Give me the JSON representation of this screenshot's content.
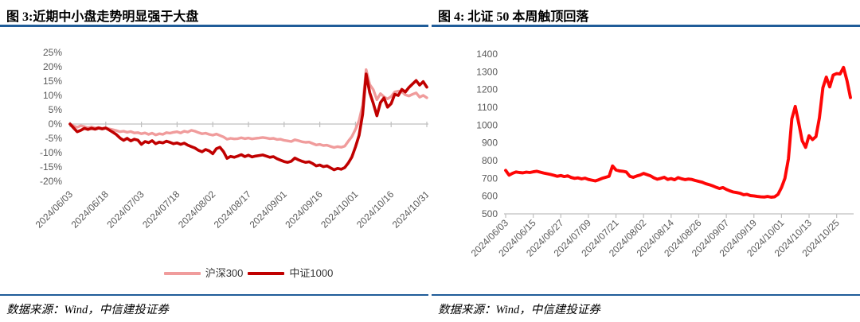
{
  "accent_color": "#1F5C99",
  "axis_color": "#BFBFBF",
  "label_color": "#595959",
  "panels": [
    {
      "title": "图 3:近期中小盘走势明显强于大盘",
      "source": "数据来源：Wind，中信建投证券",
      "chart_data": {
        "type": "line",
        "title": "",
        "xlabel": "",
        "ylabel": "",
        "ylim": [
          -20,
          25
        ],
        "y_ticks": [
          25,
          20,
          15,
          10,
          5,
          0,
          -5,
          -10,
          -15,
          -20
        ],
        "y_tick_suffix": "%",
        "grid": false,
        "legend_position": "bottom",
        "x_tick_labels": [
          "2024/06/03",
          "2024/06/18",
          "2024/07/03",
          "2024/07/18",
          "2024/08/02",
          "2024/08/17",
          "2024/09/01",
          "2024/09/16",
          "2024/10/01",
          "2024/10/16",
          "2024/10/31"
        ],
        "series": [
          {
            "name": "沪深300",
            "color": "#F09C9C",
            "values": [
              0.0,
              -0.7,
              -1.1,
              -0.6,
              -0.9,
              -1.3,
              -1.0,
              -1.4,
              -1.2,
              -1.5,
              -1.3,
              -1.7,
              -2.0,
              -2.3,
              -2.7,
              -2.5,
              -2.9,
              -2.6,
              -3.1,
              -3.0,
              -3.4,
              -3.1,
              -3.6,
              -3.2,
              -3.8,
              -3.4,
              -3.6,
              -3.0,
              -3.2,
              -2.9,
              -2.7,
              -3.1,
              -2.5,
              -2.8,
              -2.2,
              -2.5,
              -3.0,
              -3.4,
              -3.2,
              -3.6,
              -3.9,
              -3.5,
              -4.0,
              -4.5,
              -5.3,
              -5.0,
              -5.2,
              -5.1,
              -4.8,
              -5.1,
              -4.9,
              -5.2,
              -5.0,
              -4.9,
              -4.7,
              -4.9,
              -5.1,
              -5.0,
              -5.4,
              -5.3,
              -5.7,
              -5.9,
              -6.1,
              -5.5,
              -5.8,
              -6.2,
              -6.4,
              -6.3,
              -6.8,
              -7.3,
              -7.1,
              -7.5,
              -7.4,
              -7.8,
              -8.2,
              -7.9,
              -8.1,
              -7.7,
              -6.0,
              -4.4,
              -1.9,
              1.2,
              6.6,
              19.0,
              13.8,
              12.0,
              8.5,
              10.6,
              9.5,
              8.8,
              9.6,
              11.2,
              11.5,
              11.3,
              10.2,
              9.8,
              10.4,
              10.9,
              9.4,
              10.0,
              9.2
            ]
          },
          {
            "name": "中证1000",
            "color": "#C00000",
            "values": [
              0.0,
              -1.4,
              -2.7,
              -2.2,
              -1.5,
              -1.9,
              -1.5,
              -1.8,
              -1.4,
              -1.7,
              -1.4,
              -2.1,
              -2.9,
              -3.7,
              -4.9,
              -5.7,
              -5.0,
              -5.9,
              -5.3,
              -5.6,
              -7.1,
              -6.1,
              -6.5,
              -5.8,
              -6.9,
              -6.3,
              -6.6,
              -6.0,
              -6.4,
              -6.9,
              -6.6,
              -7.1,
              -6.7,
              -7.4,
              -7.9,
              -8.4,
              -9.2,
              -9.7,
              -8.9,
              -9.4,
              -10.4,
              -8.6,
              -8.1,
              -9.6,
              -12.0,
              -11.3,
              -11.6,
              -11.2,
              -10.7,
              -11.4,
              -10.9,
              -11.5,
              -11.2,
              -11.0,
              -10.8,
              -11.2,
              -11.6,
              -11.4,
              -12.1,
              -12.6,
              -13.1,
              -13.4,
              -13.0,
              -11.9,
              -12.5,
              -13.0,
              -13.4,
              -13.2,
              -13.8,
              -14.6,
              -14.3,
              -14.9,
              -14.6,
              -15.3,
              -16.0,
              -15.5,
              -15.8,
              -15.2,
              -13.6,
              -11.5,
              -8.0,
              -4.0,
              3.4,
              17.5,
              11.0,
              7.2,
              2.9,
              7.5,
              9.1,
              5.9,
              7.1,
              10.4,
              10.0,
              12.1,
              11.2,
              12.8,
              14.0,
              15.2,
              13.6,
              14.8,
              12.9
            ]
          }
        ]
      }
    },
    {
      "title": "图 4: 北证 50 本周触顶回落",
      "source": "数据来源：Wind，中信建投证券",
      "chart_data": {
        "type": "line",
        "title": "",
        "xlabel": "",
        "ylabel": "",
        "ylim": [
          500,
          1400
        ],
        "y_ticks": [
          1400,
          1300,
          1200,
          1100,
          1000,
          900,
          800,
          700,
          600,
          500
        ],
        "y_tick_suffix": "",
        "grid": false,
        "legend_position": "none",
        "x_tick_labels": [
          "2024/06/03",
          "2024/06/15",
          "2024/06/27",
          "2024/07/09",
          "2024/07/21",
          "2024/08/02",
          "2024/08/14",
          "2024/08/26",
          "2024/09/07",
          "2024/09/19",
          "2024/10/01",
          "2024/10/13",
          "2024/10/25"
        ],
        "series": [
          {
            "name": "北证50",
            "color": "#FE0606",
            "values": [
              745,
              718,
              729,
              736,
              733,
              731,
              735,
              733,
              737,
              740,
              735,
              730,
              726,
              722,
              717,
              712,
              716,
              710,
              714,
              705,
              700,
              703,
              697,
              701,
              694,
              690,
              686,
              692,
              700,
              706,
              712,
              770,
              747,
              742,
              740,
              736,
              712,
              706,
              713,
              719,
              728,
              721,
              714,
              703,
              695,
              700,
              706,
              694,
              699,
              692,
              704,
              698,
              693,
              696,
              694,
              688,
              683,
              678,
              670,
              665,
              658,
              650,
              643,
              648,
              638,
              630,
              623,
              620,
              616,
              608,
              610,
              603,
              601,
              598,
              596,
              595,
              598,
              594,
              596,
              610,
              648,
              700,
              810,
              1035,
              1105,
              1010,
              912,
              875,
              940,
              918,
              935,
              1040,
              1210,
              1270,
              1215,
              1282,
              1290,
              1288,
              1325,
              1250,
              1155
            ]
          }
        ]
      }
    }
  ]
}
